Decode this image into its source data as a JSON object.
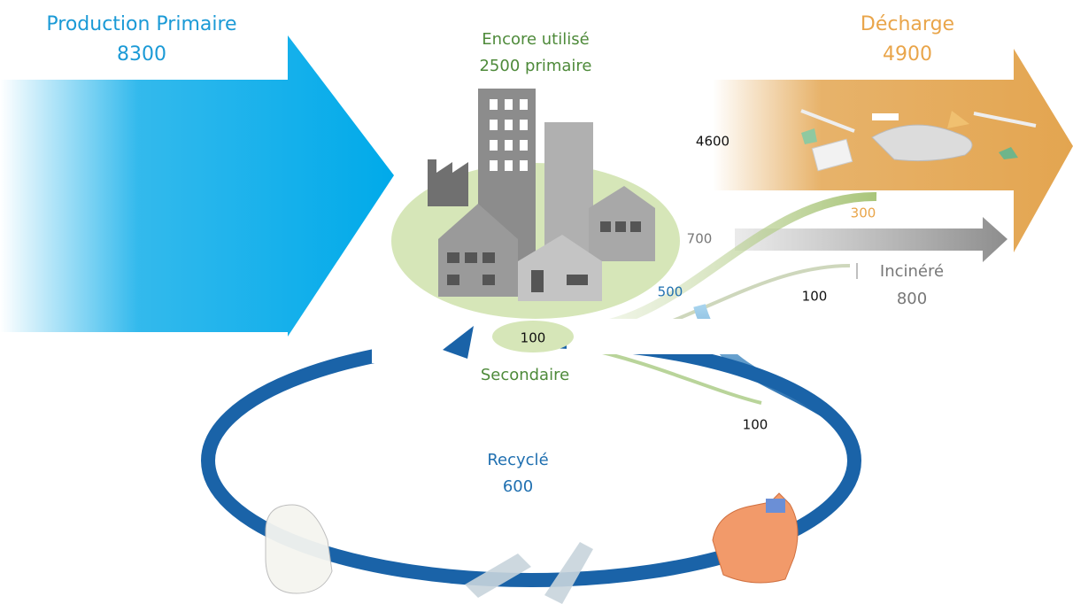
{
  "production": {
    "label": "Production Primaire",
    "value": "8300"
  },
  "in_use": {
    "label": "Encore utilisé",
    "value": "2500 primaire"
  },
  "landfill": {
    "label": "Décharge",
    "value": "4900"
  },
  "incinerated": {
    "label": "Incinéré",
    "value": "800"
  },
  "recycled": {
    "label": "Recyclé",
    "value": "600"
  },
  "secondary": {
    "label": "Secondaire",
    "value": "100"
  },
  "flows": {
    "to_landfill": "4600",
    "to_incineration": "700",
    "secondary_to_landfill": "300",
    "secondary_to_incineration": "100",
    "to_recycling": "500",
    "secondary_to_recycling": "100"
  }
}
